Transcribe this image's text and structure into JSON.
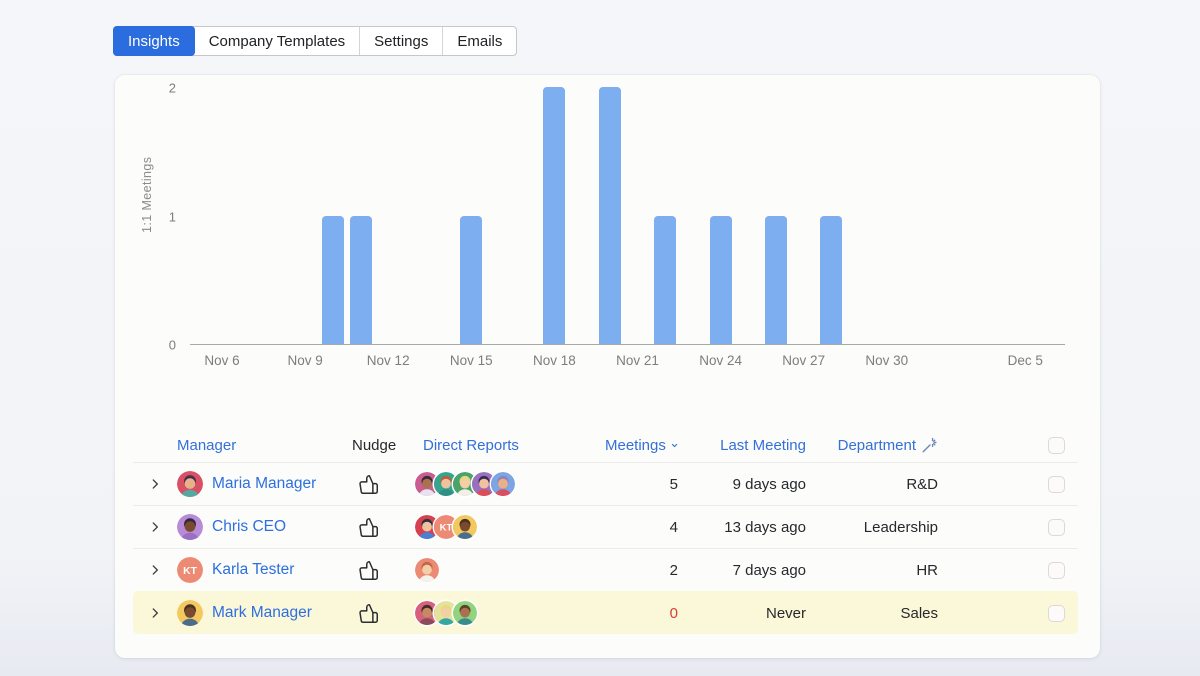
{
  "tabs": [
    {
      "label": "Insights",
      "active": true
    },
    {
      "label": "Company Templates",
      "active": false
    },
    {
      "label": "Settings",
      "active": false
    },
    {
      "label": "Emails",
      "active": false
    }
  ],
  "chart_data": {
    "type": "bar",
    "title": "",
    "xlabel": "",
    "ylabel": "1:1 Meetings",
    "ylim": [
      0,
      2
    ],
    "yticks": [
      0,
      1,
      2
    ],
    "grid": false,
    "legend": false,
    "bar_color": "#7caef0",
    "xticks": [
      {
        "label": "Nov 6",
        "offset": 0
      },
      {
        "label": "Nov 9",
        "offset": 3
      },
      {
        "label": "Nov 12",
        "offset": 6
      },
      {
        "label": "Nov 15",
        "offset": 9
      },
      {
        "label": "Nov 18",
        "offset": 12
      },
      {
        "label": "Nov 21",
        "offset": 15
      },
      {
        "label": "Nov 24",
        "offset": 18
      },
      {
        "label": "Nov 27",
        "offset": 21
      },
      {
        "label": "Nov 30",
        "offset": 24
      },
      {
        "label": "Dec 5",
        "offset": 29
      }
    ],
    "bars": [
      {
        "date": "Nov 10",
        "offset": 4,
        "value": 1
      },
      {
        "date": "Nov 11",
        "offset": 5,
        "value": 1
      },
      {
        "date": "Nov 15",
        "offset": 9,
        "value": 1
      },
      {
        "date": "Nov 18",
        "offset": 12,
        "value": 2
      },
      {
        "date": "Nov 20",
        "offset": 14,
        "value": 2
      },
      {
        "date": "Nov 22",
        "offset": 16,
        "value": 1
      },
      {
        "date": "Nov 24",
        "offset": 18,
        "value": 1
      },
      {
        "date": "Nov 26",
        "offset": 20,
        "value": 1
      },
      {
        "date": "Nov 28",
        "offset": 22,
        "value": 1
      }
    ]
  },
  "table": {
    "headers": {
      "manager": "Manager",
      "nudge": "Nudge",
      "reports": "Direct Reports",
      "meetings": "Meetings",
      "last_meeting": "Last Meeting",
      "department": "Department"
    },
    "sort_column": "meetings",
    "rows": [
      {
        "name": "Maria Manager",
        "avatar": {
          "type": "person",
          "bg": "#d94f63",
          "skin": "#e9b089",
          "hair": "#43304e",
          "shirt": "#57a8a2"
        },
        "reports": [
          {
            "type": "person",
            "bg": "#c95d92",
            "skin": "#a97150",
            "hair": "#3a2b33",
            "shirt": "#e9e2ee"
          },
          {
            "type": "person",
            "bg": "#35a68c",
            "skin": "#f0c29e",
            "hair": "#c25b3a",
            "shirt": "#2f8f86"
          },
          {
            "type": "person",
            "bg": "#4aa369",
            "skin": "#f2cfa5",
            "hair": "#ead684",
            "shirt": "#f3efe6"
          },
          {
            "type": "person",
            "bg": "#9a6fc2",
            "skin": "#f0c29e",
            "hair": "#3a2d52",
            "shirt": "#d94f55"
          },
          {
            "type": "person",
            "bg": "#7da4e3",
            "skin": "#e9b089",
            "hair": "#8f84b8",
            "shirt": "#d94f60"
          }
        ],
        "meetings": "5",
        "last_meeting": "9 days ago",
        "department": "R&D",
        "highlighted": false,
        "meetings_alert": false
      },
      {
        "name": "Chris CEO",
        "avatar": {
          "type": "person",
          "bg": "#b78bd6",
          "skin": "#7a4a2e",
          "hair": "#332640",
          "shirt": "#9a6fc2"
        },
        "reports": [
          {
            "type": "person",
            "bg": "#d6404f",
            "skin": "#f0c29e",
            "hair": "#2e3440",
            "shirt": "#4a7fd4"
          },
          {
            "type": "initials",
            "bg": "#ed8a74",
            "initials": "KT"
          },
          {
            "type": "person",
            "bg": "#f3c95f",
            "skin": "#7a4a2e",
            "hair": "#4a3222",
            "shirt": "#4a6d8c"
          }
        ],
        "meetings": "4",
        "last_meeting": "13 days ago",
        "department": "Leadership",
        "highlighted": false,
        "meetings_alert": false
      },
      {
        "name": "Karla Tester",
        "avatar": {
          "type": "initials",
          "bg": "#ed8a74",
          "initials": "KT"
        },
        "reports": [
          {
            "type": "person",
            "bg": "#ed8a74",
            "skin": "#f2cfa5",
            "hair": "#c2684a",
            "shirt": "#f5f2ec"
          }
        ],
        "meetings": "2",
        "last_meeting": "7 days ago",
        "department": "HR",
        "highlighted": false,
        "meetings_alert": false
      },
      {
        "name": "Mark Manager",
        "avatar": {
          "type": "person",
          "bg": "#f3c95f",
          "skin": "#7a4a2e",
          "hair": "#4a3222",
          "shirt": "#4a6d8c"
        },
        "reports": [
          {
            "type": "person",
            "bg": "#d6607e",
            "skin": "#c58a62",
            "hair": "#3f2c24",
            "shirt": "#8c4a5a"
          },
          {
            "type": "person",
            "bg": "#e3e49a",
            "skin": "#f2cfa5",
            "hair": "#ead684",
            "shirt": "#35a6a0"
          },
          {
            "type": "person",
            "bg": "#90d47d",
            "skin": "#a97150",
            "hair": "#5d4028",
            "shirt": "#3a8c8c"
          }
        ],
        "meetings": "0",
        "last_meeting": "Never",
        "department": "Sales",
        "highlighted": true,
        "meetings_alert": true
      }
    ]
  },
  "colors": {
    "accent_blue": "#2b6cdf",
    "link_blue": "#2d6fe0",
    "header_blue": "#3470d8",
    "bar_blue": "#7caef0",
    "alert_red": "#d43f38",
    "highlight_yellow": "#fbf7d9"
  }
}
